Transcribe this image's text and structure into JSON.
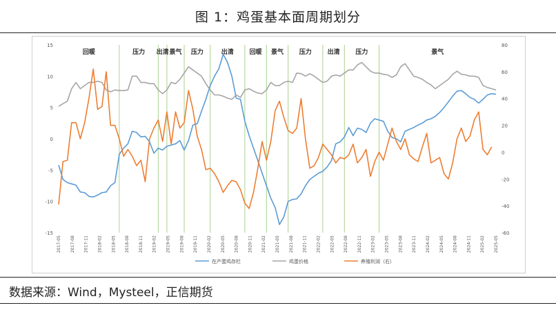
{
  "header": {
    "title": "图 1：鸡蛋基本面周期划分"
  },
  "footer": {
    "source": "数据来源：Wind，Mysteel，正信期货"
  },
  "chart_data": {
    "type": "line",
    "left_axis": {
      "min": -15,
      "max": 15,
      "ticks": [
        "15",
        "10",
        "5",
        "0",
        "-5",
        "-10",
        "-15"
      ]
    },
    "right_axis": {
      "min": -60,
      "max": 80,
      "ticks": [
        "80",
        "60",
        "40",
        "20",
        "0",
        "-20",
        "-40",
        "-60"
      ]
    },
    "x_tick_labels": [
      "2017-05",
      "2017-08",
      "2017-11",
      "2018-02",
      "2018-05",
      "2018-08",
      "2018-11",
      "2019-02",
      "2019-05",
      "2019-08",
      "2019-11",
      "2020-02",
      "2020-05",
      "2020-08",
      "2020-11",
      "2021-02",
      "2021-05",
      "2021-08",
      "2021-11",
      "2022-02",
      "2022-05",
      "2022-08",
      "2022-11",
      "2023-02",
      "2023-05",
      "2023-08",
      "2023-11",
      "2024-02",
      "2024-05",
      "2024-08",
      "2024-11",
      "2025-02",
      "2025-05"
    ],
    "phases": [
      "回暖",
      "压力",
      "出清",
      "景气",
      "压力",
      "出清",
      "回暖",
      "景气",
      "压力",
      "出清",
      "压力",
      "景气"
    ],
    "legend": [
      "在产蛋鸡存栏",
      "鸡蛋价格",
      "养殖利润（右）"
    ],
    "colors": {
      "inventory": "#5b9bd5",
      "price": "#a5a5a5",
      "profit": "#ed7d31",
      "phase_line": "#a9d18e"
    },
    "series": [
      {
        "name": "在产蛋鸡存栏",
        "axis": "left",
        "values": [
          -4.2,
          -6.5,
          -7.0,
          -7.2,
          -7.4,
          -8.5,
          -8.6,
          -9.2,
          -9.3,
          -9.0,
          -8.6,
          -8.5,
          -7.5,
          -7.0,
          -2.5,
          -1.5,
          -0.8,
          1.2,
          1.0,
          0.3,
          0.4,
          -0.5,
          -2.3,
          -1.5,
          -1.8,
          -1.2,
          -1.0,
          -0.8,
          -0.3,
          -1.8,
          -0.3,
          2.2,
          2.4,
          4.4,
          6.3,
          8.5,
          10.0,
          11.2,
          13.5,
          12.2,
          10.0,
          6.5,
          6.3,
          2.8,
          0.5,
          -1.5,
          -3.5,
          -5.5,
          -7.5,
          -9.5,
          -11.0,
          -13.7,
          -12.5,
          -10.0,
          -9.7,
          -9.6,
          -8.8,
          -7.5,
          -6.5,
          -6.0,
          -5.5,
          -5.2,
          -4.5,
          -3.5,
          -0.8,
          -0.5,
          0.3,
          1.8,
          0.5,
          1.7,
          1.5,
          1.0,
          2.5,
          3.2,
          3.0,
          2.8,
          1.2,
          0.2,
          0.0,
          -0.5,
          1.2,
          1.5,
          1.8,
          2.2,
          2.5,
          3.0,
          3.2,
          3.6,
          4.2,
          5.0,
          5.9,
          6.8,
          7.6,
          7.7,
          7.2,
          6.6,
          6.3,
          5.7,
          6.3,
          7.0,
          7.2,
          7.1
        ]
      },
      {
        "name": "鸡蛋价格",
        "axis": "left",
        "values": [
          5.2,
          5.6,
          6.0,
          8.0,
          9.0,
          8.0,
          8.5,
          9.0,
          9.0,
          9.2,
          9.0,
          7.8,
          7.5,
          7.8,
          7.7,
          7.7,
          7.8,
          10.0,
          10.0,
          9.0,
          9.0,
          8.8,
          8.8,
          7.8,
          7.2,
          7.8,
          9.0,
          8.8,
          9.5,
          10.5,
          11.5,
          11.0,
          10.5,
          10.0,
          8.8,
          7.8,
          7.0,
          7.0,
          6.8,
          6.5,
          6.3,
          7.0,
          6.6,
          7.8,
          8.0,
          7.6,
          7.3,
          7.2,
          7.8,
          9.0,
          8.5,
          8.5,
          9.0,
          9.2,
          9.0,
          10.5,
          10.4,
          10.0,
          10.4,
          10.0,
          9.5,
          9.0,
          9.2,
          10.0,
          10.2,
          10.0,
          10.5,
          11.0,
          11.0,
          11.8,
          12.2,
          11.5,
          10.8,
          10.5,
          10.5,
          10.3,
          10.2,
          9.8,
          10.2,
          11.5,
          12.0,
          11.0,
          10.0,
          9.8,
          9.5,
          9.0,
          8.6,
          8.0,
          8.5,
          9.0,
          9.5,
          10.3,
          10.8,
          10.3,
          10.2,
          10.0,
          10.0,
          9.8,
          8.5,
          8.2,
          8.0,
          7.8
        ]
      },
      {
        "name": "养殖利润（右）",
        "axis": "right",
        "values": [
          -39,
          -7,
          -6,
          22,
          22,
          10,
          22,
          40,
          62,
          32,
          34,
          60,
          20,
          20,
          10,
          -3,
          2,
          -3,
          -10,
          -6,
          -22,
          10,
          18,
          24,
          8,
          30,
          6,
          30,
          18,
          22,
          46,
          32,
          12,
          2,
          -13,
          -12,
          -16,
          -22,
          -30,
          -25,
          -21,
          -22,
          -28,
          -38,
          -42,
          -30,
          -12,
          8,
          -6,
          8,
          31,
          38,
          26,
          16,
          14,
          18,
          40,
          10,
          -12,
          -10,
          -4,
          6,
          2,
          -2,
          -8,
          -4,
          -5,
          -2,
          6,
          -8,
          -4,
          2,
          -18,
          -7,
          0,
          -6,
          6,
          18,
          8,
          2,
          10,
          -2,
          -5,
          -7,
          4,
          14,
          -8,
          -6,
          -4,
          -16,
          -20,
          -8,
          10,
          18,
          8,
          12,
          24,
          30,
          2,
          -2,
          4
        ]
      }
    ]
  }
}
